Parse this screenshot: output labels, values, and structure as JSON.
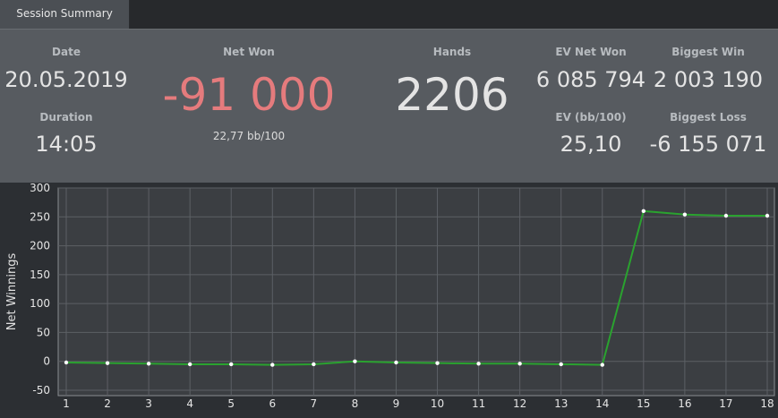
{
  "tab": {
    "label": "Session Summary"
  },
  "summary": {
    "date_label": "Date",
    "date_value": "20.05.2019",
    "duration_label": "Duration",
    "duration_value": "14:05",
    "net_won_label": "Net Won",
    "net_won_value": "-91 000",
    "net_won_rate": "22,77 bb/100",
    "hands_label": "Hands",
    "hands_value": "2206",
    "ev_net_won_label": "EV Net Won",
    "ev_net_won_value": "6 085 794",
    "ev_bb_label": "EV (bb/100)",
    "ev_bb_value": "25,10",
    "biggest_win_label": "Biggest Win",
    "biggest_win_value": "2 003 190",
    "biggest_loss_label": "Biggest Loss",
    "biggest_loss_value": "-6 155 071"
  },
  "colors": {
    "negative": "#e57b7d",
    "line": "#2aa22f",
    "marker": "#ffffff"
  },
  "chart_data": {
    "type": "line",
    "ylabel": "Net Winnings",
    "xlabel": "",
    "x": [
      1,
      2,
      3,
      4,
      5,
      6,
      7,
      8,
      9,
      10,
      11,
      12,
      13,
      14,
      15,
      16,
      17,
      18
    ],
    "series": [
      {
        "values": [
          -2,
          -3,
          -4,
          -5,
          -5,
          -6,
          -5,
          0,
          -2,
          -3,
          -4,
          -4,
          -5,
          -6,
          260,
          254,
          252,
          252
        ]
      }
    ],
    "xlim": [
      1,
      18
    ],
    "ylim": [
      -50,
      300
    ],
    "yticks": [
      -50,
      0,
      50,
      100,
      150,
      200,
      250,
      300
    ],
    "grid": true
  }
}
